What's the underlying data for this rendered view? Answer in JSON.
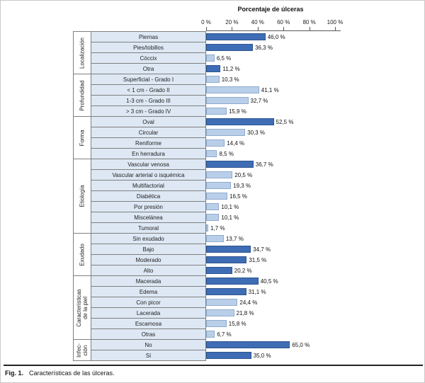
{
  "caption": {
    "label": "Fig. 1.",
    "text": "Características de las úlceras."
  },
  "chart_data": {
    "type": "bar",
    "orientation": "horizontal",
    "title": "Porcentaje de úlceras",
    "xlabel": "Porcentaje de úlceras",
    "ylabel": "",
    "xlim": [
      0,
      100
    ],
    "x_ticks": [
      "0 %",
      "20 %",
      "40 %",
      "60 %",
      "80 %",
      "100 %"
    ],
    "grid": false,
    "legend": false,
    "colors": {
      "dark": "#3e6db5",
      "dark_border": "#2d5590",
      "light": "#b9cfe9",
      "light_border": "#8fabcf",
      "cell_bg": "#dde8f4",
      "cell_border": "#7f7f7f"
    },
    "groups": [
      {
        "id": "localizacion",
        "name": "Localización",
        "items": [
          {
            "label": "Piernas",
            "value": 46.0,
            "display": "46,0 %",
            "color": "dark"
          },
          {
            "label": "Pies/tobillos",
            "value": 36.3,
            "display": "36,3 %",
            "color": "dark"
          },
          {
            "label": "Cóccix",
            "value": 6.5,
            "display": "6,5 %",
            "color": "light"
          },
          {
            "label": "Otra",
            "value": 11.2,
            "display": "11,2 %",
            "color": "dark"
          }
        ]
      },
      {
        "id": "profundidad",
        "name": "Profundidad",
        "items": [
          {
            "label": "Superficial - Grado I",
            "value": 10.3,
            "display": "10,3 %",
            "color": "light"
          },
          {
            "label": "< 1 cm - Grado II",
            "value": 41.1,
            "display": "41,1 %",
            "color": "light"
          },
          {
            "label": "1-3 cm - Grado III",
            "value": 32.7,
            "display": "32,7 %",
            "color": "light"
          },
          {
            "label": "> 3 cm - Grado IV",
            "value": 15.9,
            "display": "15,9 %",
            "color": "light"
          }
        ]
      },
      {
        "id": "forma",
        "name": "Forma",
        "items": [
          {
            "label": "Oval",
            "value": 52.5,
            "display": "52,5 %",
            "color": "dark"
          },
          {
            "label": "Circular",
            "value": 30.3,
            "display": "30,3 %",
            "color": "light"
          },
          {
            "label": "Reniforme",
            "value": 14.4,
            "display": "14,4 %",
            "color": "light"
          },
          {
            "label": "En herradura",
            "value": 8.5,
            "display": "8,5 %",
            "color": "light"
          }
        ]
      },
      {
        "id": "etiologia",
        "name": "Etiología",
        "items": [
          {
            "label": "Vascular venosa",
            "value": 36.7,
            "display": "36,7 %",
            "color": "dark"
          },
          {
            "label": "Vascular arterial o isquémica",
            "value": 20.5,
            "display": "20,5 %",
            "color": "light"
          },
          {
            "label": "Multifactorial",
            "value": 19.3,
            "display": "19,3 %",
            "color": "light"
          },
          {
            "label": "Diabética",
            "value": 16.5,
            "display": "16,5 %",
            "color": "light"
          },
          {
            "label": "Por presión",
            "value": 10.1,
            "display": "10,1 %",
            "color": "light"
          },
          {
            "label": "Miscelánea",
            "value": 10.1,
            "display": "10,1 %",
            "color": "light"
          },
          {
            "label": "Tumoral",
            "value": 1.7,
            "display": "1,7 %",
            "color": "light"
          }
        ]
      },
      {
        "id": "exudado",
        "name": "Exudado",
        "items": [
          {
            "label": "Sin exudado",
            "value": 13.7,
            "display": "13,7 %",
            "color": "light"
          },
          {
            "label": "Bajo",
            "value": 34.7,
            "display": "34,7 %",
            "color": "dark"
          },
          {
            "label": "Moderado",
            "value": 31.5,
            "display": "31,5 %",
            "color": "dark"
          },
          {
            "label": "Alto",
            "value": 20.2,
            "display": "20,2 %",
            "color": "dark"
          }
        ]
      },
      {
        "id": "caracteristicas-piel",
        "name": "Características\nde la piel",
        "items": [
          {
            "label": "Macerada",
            "value": 40.5,
            "display": "40,5 %",
            "color": "dark"
          },
          {
            "label": "Edema",
            "value": 31.1,
            "display": "31,1 %",
            "color": "dark"
          },
          {
            "label": "Con picor",
            "value": 24.4,
            "display": "24,4 %",
            "color": "light"
          },
          {
            "label": "Lacerada",
            "value": 21.8,
            "display": "21,8 %",
            "color": "light"
          },
          {
            "label": "Escamosa",
            "value": 15.8,
            "display": "15,8 %",
            "color": "light"
          },
          {
            "label": "Otras",
            "value": 6.7,
            "display": "6,7 %",
            "color": "light"
          }
        ]
      },
      {
        "id": "infeccion",
        "name": "Infec-\nción",
        "items": [
          {
            "label": "No",
            "value": 65.0,
            "display": "65,0 %",
            "color": "dark"
          },
          {
            "label": "Sí",
            "value": 35.0,
            "display": "35,0 %",
            "color": "dark"
          }
        ]
      }
    ]
  }
}
